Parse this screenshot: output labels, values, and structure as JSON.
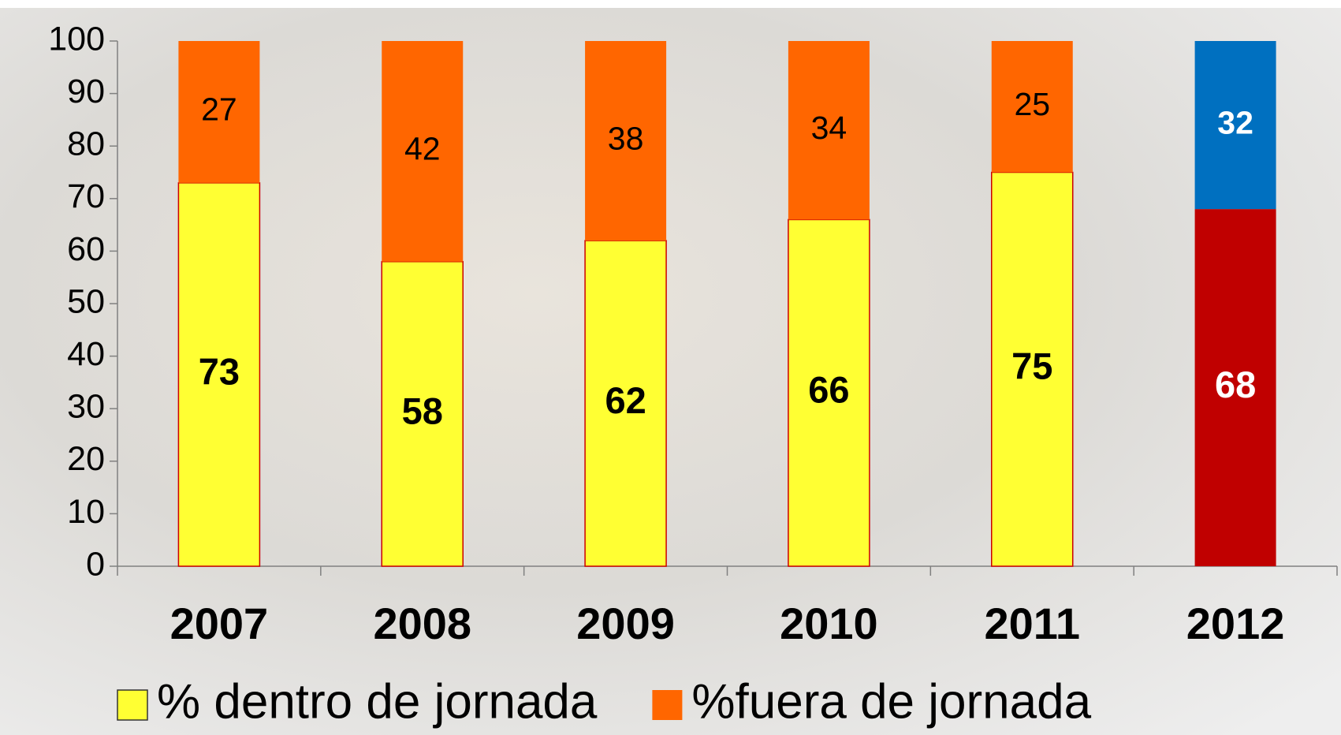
{
  "chart_data": {
    "type": "stacked_bar",
    "categories": [
      "2007",
      "2008",
      "2009",
      "2010",
      "2011",
      "2012"
    ],
    "series": [
      {
        "name": "% dentro de jornada",
        "color": "#ffff33",
        "colors": [
          "#ffff33",
          "#ffff33",
          "#ffff33",
          "#ffff33",
          "#ffff33",
          "#c00000"
        ],
        "label_colors": [
          "#000000",
          "#000000",
          "#000000",
          "#000000",
          "#000000",
          "#ffffff"
        ],
        "values": [
          73,
          58,
          62,
          66,
          75,
          68
        ]
      },
      {
        "name": "%fuera de jornada",
        "color": "#ff6600",
        "colors": [
          "#ff6600",
          "#ff6600",
          "#ff6600",
          "#ff6600",
          "#ff6600",
          "#0070c0"
        ],
        "label_colors": [
          "#000000",
          "#000000",
          "#000000",
          "#000000",
          "#000000",
          "#ffffff"
        ],
        "values": [
          27,
          42,
          38,
          34,
          25,
          32
        ]
      }
    ],
    "ylim": [
      0,
      100
    ],
    "yticks": [
      0,
      10,
      20,
      30,
      40,
      50,
      60,
      70,
      80,
      90,
      100
    ],
    "grid": false,
    "legend": "bottom"
  }
}
